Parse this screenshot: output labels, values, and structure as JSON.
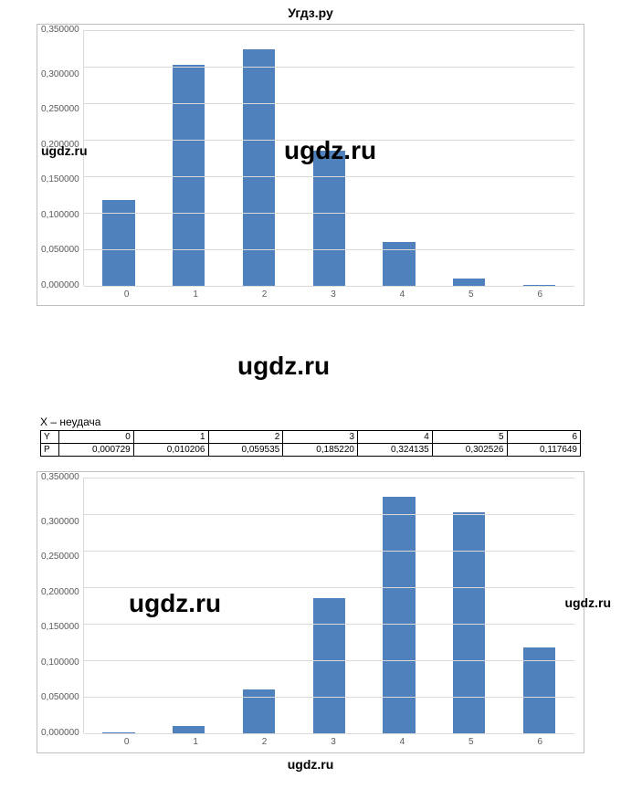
{
  "page_title": "Угдз.ру",
  "watermarks": {
    "small": "ugdz.ru",
    "big": "ugdz.ru"
  },
  "chart1": {
    "type": "bar",
    "categories": [
      "0",
      "1",
      "2",
      "3",
      "4",
      "5",
      "6"
    ],
    "values": [
      0.117649,
      0.302526,
      0.324135,
      0.18522,
      0.059535,
      0.010206,
      0.000729
    ],
    "bar_color": "#4f81bd",
    "background_color": "#ffffff",
    "grid_color": "#d9d9d9",
    "border_color": "#bfbfbf",
    "ylim": [
      0,
      0.35
    ],
    "ytick_step": 0.05,
    "ytick_labels": [
      "0,350000",
      "0,300000",
      "0,250000",
      "0,200000",
      "0,150000",
      "0,100000",
      "0,050000",
      "0,000000"
    ],
    "label_fontsize": 10,
    "label_color": "#595959",
    "bar_width": 0.46
  },
  "table_section": {
    "label": "X – неудача",
    "row1_header": "Y",
    "row2_header": "P",
    "columns": [
      "0",
      "1",
      "2",
      "3",
      "4",
      "5",
      "6"
    ],
    "probs": [
      "0,000729",
      "0,010206",
      "0,059535",
      "0,185220",
      "0,324135",
      "0,302526",
      "0,117649"
    ]
  },
  "chart2": {
    "type": "bar",
    "categories": [
      "0",
      "1",
      "2",
      "3",
      "4",
      "5",
      "6"
    ],
    "values": [
      0.000729,
      0.010206,
      0.059535,
      0.18522,
      0.324135,
      0.302526,
      0.117649
    ],
    "bar_color": "#4f81bd",
    "background_color": "#ffffff",
    "grid_color": "#d9d9d9",
    "border_color": "#bfbfbf",
    "ylim": [
      0,
      0.35
    ],
    "ytick_step": 0.05,
    "ytick_labels": [
      "0,350000",
      "0,300000",
      "0,250000",
      "0,200000",
      "0,150000",
      "0,100000",
      "0,050000",
      "0,000000"
    ],
    "label_fontsize": 10,
    "label_color": "#595959",
    "bar_width": 0.46
  }
}
